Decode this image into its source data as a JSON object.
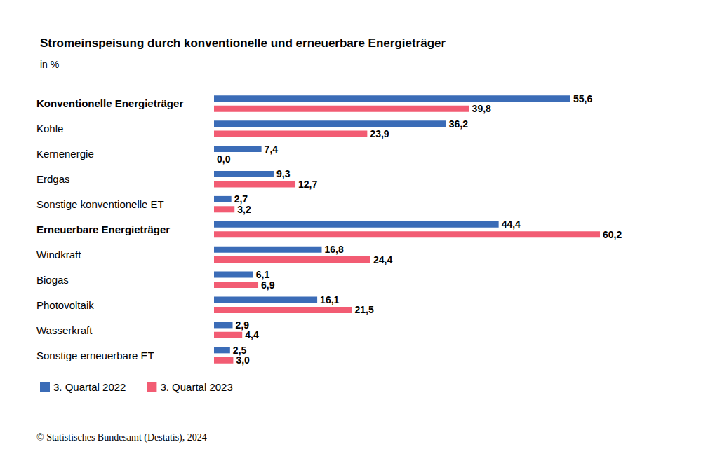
{
  "chart_data": {
    "type": "bar",
    "orientation": "horizontal",
    "title": "Stromeinspeisung durch konventionelle und erneuerbare Energieträger",
    "subtitle": "in %",
    "source": "© Statistisches Bundesamt (Destatis), 2024",
    "categories": [
      "Konventionelle Energieträger",
      "Kohle",
      "Kernenergie",
      "Erdgas",
      "Sonstige konventionelle ET",
      "Erneuerbare Energieträger",
      "Windkraft",
      "Biogas",
      "Photovoltaik",
      "Wasserkraft",
      "Sonstige erneuerbare ET"
    ],
    "series": [
      {
        "name": "3. Quartal 2022",
        "color": "#3b6cb7",
        "values": [
          55.6,
          36.2,
          7.4,
          9.3,
          2.7,
          44.4,
          16.8,
          6.1,
          16.1,
          2.9,
          2.5
        ],
        "value_labels": [
          "55,6",
          "36,2",
          "7,4",
          "9,3",
          "2,7",
          "44,4",
          "16,8",
          "6,1",
          "16,1",
          "2,9",
          "2,5"
        ]
      },
      {
        "name": "3. Quartal 2023",
        "color": "#f25c73",
        "values": [
          39.8,
          23.9,
          0.0,
          12.7,
          3.2,
          60.2,
          24.4,
          6.9,
          21.5,
          4.4,
          3.0
        ],
        "value_labels": [
          "39,8",
          "23,9",
          "0,0",
          "12,7",
          "3,2",
          "60,2",
          "24,4",
          "6,9",
          "21,5",
          "4,4",
          "3,0"
        ]
      }
    ],
    "xlim": [
      0,
      60.2
    ],
    "data_labels": true,
    "tick_labels": "y",
    "grid": false,
    "legend": "bottom-left"
  }
}
